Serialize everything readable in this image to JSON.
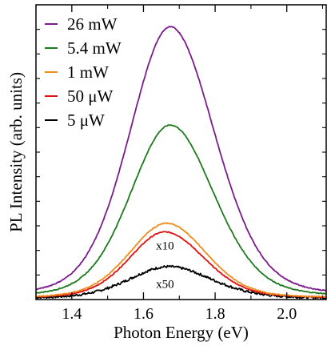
{
  "chart_data": {
    "type": "line",
    "xlabel": "Photon Energy (eV)",
    "ylabel": "PL Intensity (arb. units)",
    "xlim": [
      1.3,
      2.11
    ],
    "ylim": [
      0,
      1.0
    ],
    "xticks": [
      1.4,
      1.6,
      1.8,
      2.0
    ],
    "xtick_labels": [
      "1.4",
      "1.6",
      "1.8",
      "2.0"
    ],
    "yticks_minor_count": 12,
    "legend_position": "top-left",
    "series": [
      {
        "name": "26 mW",
        "color": "#7b1c8c",
        "peak_x": 1.675,
        "peak_y": 0.94,
        "width_lo": 0.115,
        "width_hi": 0.125,
        "scale_note": ""
      },
      {
        "name": "5.4 mW",
        "color": "#1f7a1f",
        "peak_x": 1.675,
        "peak_y": 0.6,
        "width_lo": 0.112,
        "width_hi": 0.122,
        "scale_note": ""
      },
      {
        "name": "1 mW",
        "color": "#f08c1e",
        "peak_x": 1.665,
        "peak_y": 0.26,
        "width_lo": 0.105,
        "width_hi": 0.11,
        "scale_note": ""
      },
      {
        "name": "50 μW",
        "color": "#e01010",
        "peak_x": 1.66,
        "peak_y": 0.23,
        "width_lo": 0.1,
        "width_hi": 0.11,
        "scale_note": "x10"
      },
      {
        "name": "5 μW",
        "color": "#000000",
        "peak_x": 1.67,
        "peak_y": 0.11,
        "width_lo": 0.11,
        "width_hi": 0.12,
        "scale_note": "x50"
      }
    ],
    "annotations": [
      {
        "text": "x10",
        "x": 1.66,
        "y": 0.17
      },
      {
        "text": "x50",
        "x": 1.66,
        "y": 0.04
      }
    ]
  }
}
